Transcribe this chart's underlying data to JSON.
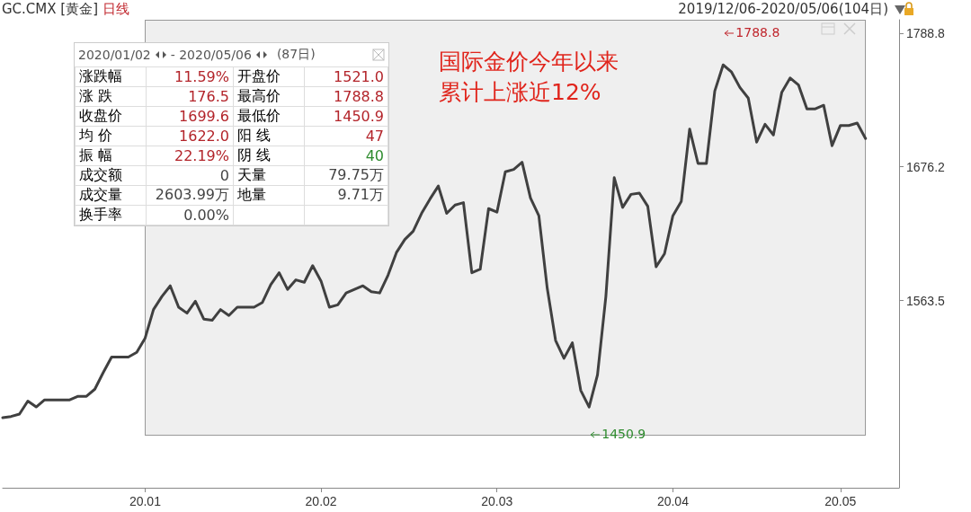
{
  "chart_data": {
    "type": "line",
    "title": "GC.CMX [黄金]",
    "subtitle": "日线",
    "categories": [
      null,
      null,
      null,
      null,
      null,
      null,
      null,
      null,
      null,
      null,
      null,
      null,
      null,
      null,
      null,
      null,
      null,
      "20.01",
      null,
      null,
      null,
      null,
      null,
      null,
      null,
      null,
      null,
      null,
      null,
      null,
      null,
      null,
      null,
      null,
      null,
      null,
      null,
      null,
      "20.02",
      null,
      null,
      null,
      null,
      null,
      null,
      null,
      null,
      null,
      null,
      null,
      null,
      null,
      null,
      null,
      null,
      null,
      null,
      null,
      null,
      "20.03",
      null,
      null,
      null,
      null,
      null,
      null,
      null,
      null,
      null,
      null,
      null,
      null,
      null,
      null,
      null,
      null,
      null,
      null,
      null,
      null,
      "20.04",
      null,
      null,
      null,
      null,
      null,
      null,
      null,
      null,
      null,
      null,
      null,
      null,
      null,
      null,
      null,
      null,
      null,
      null,
      null,
      "20.05",
      null,
      null,
      null,
      null,
      null,
      null,
      null
    ],
    "series": [
      {
        "color": "#404040",
        "values": [
          1465,
          1466,
          1468,
          1479,
          1474,
          1480,
          1480,
          1480,
          1480,
          1483,
          1483,
          1489,
          1503,
          1516,
          1516,
          1516,
          1520,
          1532,
          1556,
          1567,
          1576,
          1558,
          1553,
          1563,
          1548,
          1547,
          1556,
          1551,
          1558,
          1558,
          1558,
          1562,
          1577,
          1587,
          1573,
          1581,
          1579,
          1593,
          1580,
          1558,
          1560,
          1570,
          1573,
          1576,
          1571,
          1570,
          1585,
          1604,
          1615,
          1622,
          1637,
          1649,
          1660,
          1637,
          1644,
          1646,
          1587,
          1590,
          1641,
          1638,
          1672,
          1674,
          1680,
          1650,
          1635,
          1574,
          1530,
          1515,
          1528,
          1488,
          1474,
          1501,
          1567,
          1667,
          1642,
          1653,
          1654,
          1643,
          1592,
          1603,
          1635,
          1647,
          1708,
          1679,
          1679,
          1740,
          1762,
          1756,
          1743,
          1734,
          1697,
          1712,
          1703,
          1739,
          1751,
          1745,
          1725,
          1725,
          1728,
          1694,
          1711,
          1711,
          1713,
          1700,
          null,
          null,
          null,
          null
        ]
      }
    ],
    "ylim": [
      1406,
      1800
    ],
    "yticks": [
      1563.5,
      1676.2,
      1788.8
    ],
    "marker": "none",
    "line_style": "solid",
    "grid": false,
    "annotations": [
      "国际金价今年以来累计上涨近12%",
      "2019/12/06-2020/05/06(104日)",
      "1788.8",
      "1450.9",
      "2020/01/02",
      "- 2020/05/06",
      "(87日)",
      "涨跌幅",
      "11.59%",
      "开盘价",
      "1521.0",
      "涨  跌",
      "176.5",
      "最高价",
      "1788.8",
      "收盘价",
      "1699.6",
      "最低价",
      "1450.9",
      "均  价",
      "1622.0",
      "阳  线",
      "47",
      "振  幅",
      "22.19%",
      "阴  线",
      "40",
      "成交额",
      "0",
      "天量",
      "79.75万",
      "成交量",
      "2603.99万",
      "地量",
      "9.71万",
      "换手率",
      "0.00%"
    ]
  }
}
